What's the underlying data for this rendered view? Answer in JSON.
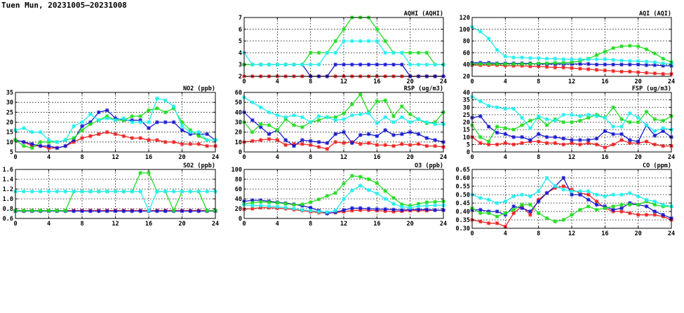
{
  "page": {
    "title": "Tuen Mun, 20231005–20231008"
  },
  "colors": {
    "red": "#ee2222",
    "blue": "#1a1ad0",
    "green": "#22dd22",
    "cyan": "#22eeee",
    "grid": "#000000"
  },
  "chart_data": [
    {
      "id": "aqhi",
      "type": "line",
      "title": "AQHI (AQHI)",
      "xlim": [
        0,
        24
      ],
      "ylim": [
        2,
        7
      ],
      "xticks": [
        0,
        4,
        8,
        12,
        16,
        20,
        24
      ],
      "yticks": [
        2,
        3,
        4,
        5,
        6,
        7
      ],
      "grid": true,
      "series": [
        {
          "color": "red",
          "values": [
            2,
            2,
            2,
            2,
            2,
            2,
            2,
            2,
            2,
            2,
            2,
            2,
            2,
            2,
            2,
            2,
            2,
            2,
            2,
            2,
            2,
            2,
            2,
            2,
            2
          ]
        },
        {
          "color": "blue",
          "values": [
            3,
            3,
            3,
            3,
            3,
            3,
            3,
            3,
            2,
            2,
            2,
            3,
            3,
            3,
            3,
            3,
            3,
            3,
            3,
            3,
            2,
            2,
            2,
            2,
            2
          ]
        },
        {
          "color": "green",
          "values": [
            3,
            3,
            3,
            3,
            3,
            3,
            3,
            3,
            4,
            4,
            4,
            5,
            6,
            7,
            7,
            7,
            6,
            5,
            4,
            4,
            4,
            4,
            4,
            3,
            3
          ]
        },
        {
          "color": "cyan",
          "values": [
            4,
            3,
            3,
            3,
            3,
            3,
            3,
            3,
            3,
            3,
            4,
            4,
            5,
            5,
            5,
            5,
            5,
            4,
            4,
            4,
            3,
            3,
            3,
            3,
            3
          ]
        }
      ]
    },
    {
      "id": "aqi",
      "type": "line",
      "title": "AQI (AQI)",
      "xlim": [
        0,
        24
      ],
      "ylim": [
        20,
        120
      ],
      "xticks": [
        0,
        4,
        8,
        12,
        16,
        20,
        24
      ],
      "yticks": [
        20,
        40,
        60,
        80,
        100,
        120
      ],
      "grid": true,
      "series": [
        {
          "color": "red",
          "values": [
            39,
            39,
            39,
            39,
            38,
            38,
            38,
            37,
            37,
            36,
            35,
            35,
            34,
            33,
            32,
            31,
            30,
            29,
            28,
            28,
            27,
            26,
            25,
            24,
            24
          ]
        },
        {
          "color": "blue",
          "values": [
            43,
            43,
            43,
            42,
            42,
            42,
            42,
            42,
            41,
            41,
            41,
            41,
            41,
            41,
            41,
            40,
            40,
            40,
            40,
            40,
            40,
            39,
            39,
            38,
            38
          ]
        },
        {
          "color": "green",
          "values": [
            41,
            41,
            41,
            41,
            41,
            41,
            41,
            41,
            42,
            42,
            43,
            43,
            44,
            46,
            50,
            56,
            62,
            68,
            71,
            72,
            71,
            66,
            59,
            50,
            44
          ]
        },
        {
          "color": "cyan",
          "values": [
            104,
            96,
            84,
            65,
            54,
            52,
            52,
            51,
            51,
            50,
            50,
            49,
            49,
            49,
            49,
            49,
            49,
            48,
            47,
            46,
            46,
            45,
            44,
            42,
            41
          ]
        }
      ]
    },
    {
      "id": "no2",
      "type": "line",
      "title": "NO2 (ppb)",
      "xlim": [
        0,
        24
      ],
      "ylim": [
        5,
        35
      ],
      "xticks": [
        0,
        4,
        8,
        12,
        16,
        20,
        24
      ],
      "yticks": [
        5,
        10,
        15,
        20,
        25,
        30,
        35
      ],
      "grid": true,
      "series": [
        {
          "color": "red",
          "values": [
            11,
            10,
            8,
            8,
            7,
            7,
            8,
            10,
            12,
            13,
            14,
            15,
            14,
            13,
            12,
            12,
            11,
            11,
            10,
            10,
            9,
            9,
            9,
            8,
            8
          ]
        },
        {
          "color": "blue",
          "values": [
            11,
            10,
            9,
            8,
            8,
            7,
            8,
            11,
            18,
            20,
            25,
            26,
            22,
            21,
            21,
            21,
            17,
            20,
            20,
            20,
            16,
            14,
            14,
            14,
            11
          ]
        },
        {
          "color": "green",
          "values": [
            11,
            8,
            7,
            10,
            10,
            10,
            11,
            12,
            16,
            19,
            21,
            23,
            21,
            21,
            23,
            23,
            26,
            27,
            25,
            27,
            20,
            16,
            13,
            11,
            11
          ]
        },
        {
          "color": "cyan",
          "values": [
            16,
            17,
            15,
            15,
            11,
            10,
            11,
            18,
            20,
            24,
            21,
            22,
            21,
            22,
            20,
            20,
            20,
            32,
            31,
            28,
            18,
            15,
            15,
            11,
            11
          ]
        }
      ]
    },
    {
      "id": "rsp",
      "type": "line",
      "title": "RSP (ug/m3)",
      "xlim": [
        0,
        24
      ],
      "ylim": [
        0,
        60
      ],
      "xticks": [
        0,
        4,
        8,
        12,
        16,
        20,
        24
      ],
      "yticks": [
        0,
        10,
        20,
        30,
        40,
        50,
        60
      ],
      "grid": true,
      "series": [
        {
          "color": "red",
          "values": [
            10,
            11,
            12,
            13,
            12,
            7,
            8,
            8,
            7,
            5,
            3,
            10,
            9,
            10,
            8,
            9,
            7,
            7,
            6,
            8,
            7,
            8,
            6,
            6,
            5
          ]
        },
        {
          "color": "blue",
          "values": [
            40,
            32,
            25,
            18,
            22,
            12,
            6,
            12,
            11,
            10,
            9,
            18,
            20,
            9,
            17,
            18,
            16,
            22,
            17,
            18,
            20,
            18,
            14,
            12,
            10
          ]
        },
        {
          "color": "green",
          "values": [
            30,
            20,
            28,
            27,
            22,
            33,
            27,
            25,
            30,
            32,
            35,
            35,
            39,
            48,
            58,
            40,
            51,
            52,
            36,
            46,
            38,
            33,
            29,
            30,
            40
          ]
        },
        {
          "color": "cyan",
          "values": [
            55,
            50,
            45,
            40,
            37,
            35,
            37,
            35,
            30,
            36,
            35,
            32,
            33,
            37,
            38,
            39,
            29,
            35,
            30,
            35,
            30,
            33,
            30,
            28,
            28
          ]
        }
      ]
    },
    {
      "id": "fsp",
      "type": "line",
      "title": "FSP (ug/m3)",
      "xlim": [
        0,
        24
      ],
      "ylim": [
        0,
        40
      ],
      "xticks": [
        0,
        4,
        8,
        12,
        16,
        20,
        24
      ],
      "yticks": [
        0,
        5,
        10,
        15,
        20,
        25,
        30,
        35,
        40
      ],
      "grid": true,
      "series": [
        {
          "color": "red",
          "values": [
            10,
            6,
            5,
            5,
            6,
            5,
            6,
            7,
            7,
            6,
            6,
            5,
            6,
            5,
            6,
            5,
            3,
            5,
            8,
            6,
            6,
            7,
            5,
            4,
            4
          ]
        },
        {
          "color": "blue",
          "values": [
            23,
            24,
            17,
            13,
            12,
            10,
            10,
            8,
            12,
            10,
            10,
            9,
            8,
            8,
            8,
            9,
            14,
            12,
            12,
            8,
            7,
            18,
            11,
            14,
            10
          ]
        },
        {
          "color": "green",
          "values": [
            18,
            10,
            7,
            17,
            16,
            15,
            18,
            21,
            23,
            18,
            22,
            20,
            20,
            21,
            23,
            25,
            23,
            30,
            22,
            20,
            20,
            27,
            22,
            21,
            24
          ]
        },
        {
          "color": "cyan",
          "values": [
            37,
            34,
            31,
            30,
            29,
            29,
            23,
            16,
            24,
            22,
            21,
            25,
            25,
            24,
            25,
            24,
            23,
            17,
            17,
            26,
            23,
            18,
            14,
            16,
            15
          ]
        }
      ]
    },
    {
      "id": "so2",
      "type": "line",
      "title": "SO2 (ppb)",
      "xlim": [
        0,
        24
      ],
      "ylim": [
        0.6,
        1.6
      ],
      "xticks": [
        0,
        4,
        8,
        12,
        16,
        20,
        24
      ],
      "yticks": [
        0.6,
        0.8,
        1.0,
        1.2,
        1.4,
        1.6
      ],
      "grid": true,
      "series": [
        {
          "color": "red",
          "values": [
            0.76,
            0.76,
            0.76,
            0.76,
            0.76,
            0.76,
            0.76,
            0.76,
            0.76,
            0.76,
            0.76,
            0.76,
            0.76,
            0.76,
            0.76,
            0.76,
            0.76,
            0.76,
            0.76,
            0.76,
            0.76,
            0.76,
            0.76,
            0.76,
            0.76
          ]
        },
        {
          "color": "blue",
          "values": [
            0.75,
            0.75,
            0.75,
            0.75,
            0.75,
            0.75,
            0.75,
            0.75,
            0.75,
            0.75,
            0.75,
            0.75,
            0.75,
            0.75,
            0.75,
            0.75,
            0.75,
            0.75,
            0.75,
            0.75,
            0.75,
            0.75,
            0.75,
            0.75,
            0.75
          ]
        },
        {
          "color": "green",
          "values": [
            0.76,
            0.76,
            0.76,
            0.76,
            0.76,
            0.76,
            0.76,
            1.15,
            1.15,
            1.15,
            1.15,
            1.15,
            1.15,
            1.15,
            1.15,
            1.53,
            1.53,
            1.15,
            1.15,
            0.76,
            1.15,
            1.15,
            1.15,
            0.76,
            0.76
          ]
        },
        {
          "color": "cyan",
          "values": [
            1.15,
            1.15,
            1.15,
            1.15,
            1.15,
            1.15,
            1.15,
            1.15,
            1.15,
            1.15,
            1.15,
            1.15,
            1.15,
            1.15,
            1.15,
            1.15,
            0.76,
            1.15,
            1.15,
            1.15,
            1.15,
            1.15,
            1.15,
            1.15,
            1.15
          ]
        }
      ]
    },
    {
      "id": "o3",
      "type": "line",
      "title": "O3 (ppb)",
      "xlim": [
        0,
        24
      ],
      "ylim": [
        0,
        100
      ],
      "xticks": [
        0,
        4,
        8,
        12,
        16,
        20,
        24
      ],
      "yticks": [
        0,
        20,
        40,
        60,
        80,
        100
      ],
      "grid": true,
      "series": [
        {
          "color": "red",
          "values": [
            19,
            20,
            22,
            22,
            21,
            20,
            18,
            16,
            14,
            12,
            11,
            12,
            14,
            16,
            17,
            17,
            16,
            15,
            14,
            15,
            16,
            16,
            16,
            17,
            17
          ]
        },
        {
          "color": "blue",
          "values": [
            35,
            37,
            37,
            35,
            33,
            31,
            29,
            26,
            22,
            16,
            10,
            13,
            17,
            21,
            21,
            20,
            19,
            19,
            18,
            17,
            18,
            18,
            18,
            17,
            17
          ]
        },
        {
          "color": "green",
          "values": [
            30,
            32,
            34,
            33,
            32,
            30,
            28,
            29,
            33,
            39,
            46,
            52,
            71,
            87,
            85,
            80,
            72,
            56,
            42,
            29,
            26,
            30,
            33,
            34,
            35
          ]
        },
        {
          "color": "cyan",
          "values": [
            28,
            26,
            26,
            25,
            24,
            22,
            20,
            17,
            16,
            14,
            13,
            16,
            40,
            57,
            67,
            58,
            51,
            40,
            30,
            24,
            22,
            25,
            26,
            27,
            27
          ]
        }
      ]
    },
    {
      "id": "co",
      "type": "line",
      "title": "CO (ppm)",
      "xlim": [
        0,
        24
      ],
      "ylim": [
        0.3,
        0.65
      ],
      "xticks": [
        0,
        4,
        8,
        12,
        16,
        20,
        24
      ],
      "yticks": [
        0.3,
        0.35,
        0.4,
        0.45,
        0.5,
        0.55,
        0.6,
        0.65
      ],
      "grid": true,
      "series": [
        {
          "color": "red",
          "values": [
            0.35,
            0.34,
            0.33,
            0.33,
            0.31,
            0.39,
            0.43,
            0.38,
            0.47,
            0.51,
            0.54,
            0.55,
            0.53,
            0.51,
            0.5,
            0.46,
            0.42,
            0.4,
            0.4,
            0.39,
            0.38,
            0.38,
            0.38,
            0.37,
            0.35
          ]
        },
        {
          "color": "blue",
          "values": [
            0.41,
            0.41,
            0.4,
            0.4,
            0.38,
            0.43,
            0.42,
            0.4,
            0.46,
            0.51,
            0.55,
            0.6,
            0.5,
            0.5,
            0.47,
            0.44,
            0.43,
            0.41,
            0.42,
            0.45,
            0.44,
            0.43,
            0.4,
            0.38,
            0.36
          ]
        },
        {
          "color": "green",
          "values": [
            0.42,
            0.39,
            0.39,
            0.37,
            0.39,
            0.41,
            0.44,
            0.44,
            0.39,
            0.36,
            0.34,
            0.35,
            0.38,
            0.41,
            0.43,
            0.41,
            0.42,
            0.43,
            0.44,
            0.44,
            0.44,
            0.46,
            0.44,
            0.43,
            0.43
          ]
        },
        {
          "color": "cyan",
          "values": [
            0.5,
            0.48,
            0.47,
            0.45,
            0.46,
            0.49,
            0.5,
            0.49,
            0.52,
            0.6,
            0.55,
            0.53,
            0.52,
            0.52,
            0.52,
            0.5,
            0.49,
            0.5,
            0.5,
            0.51,
            0.49,
            0.47,
            0.46,
            0.44,
            0.43
          ]
        }
      ]
    }
  ]
}
